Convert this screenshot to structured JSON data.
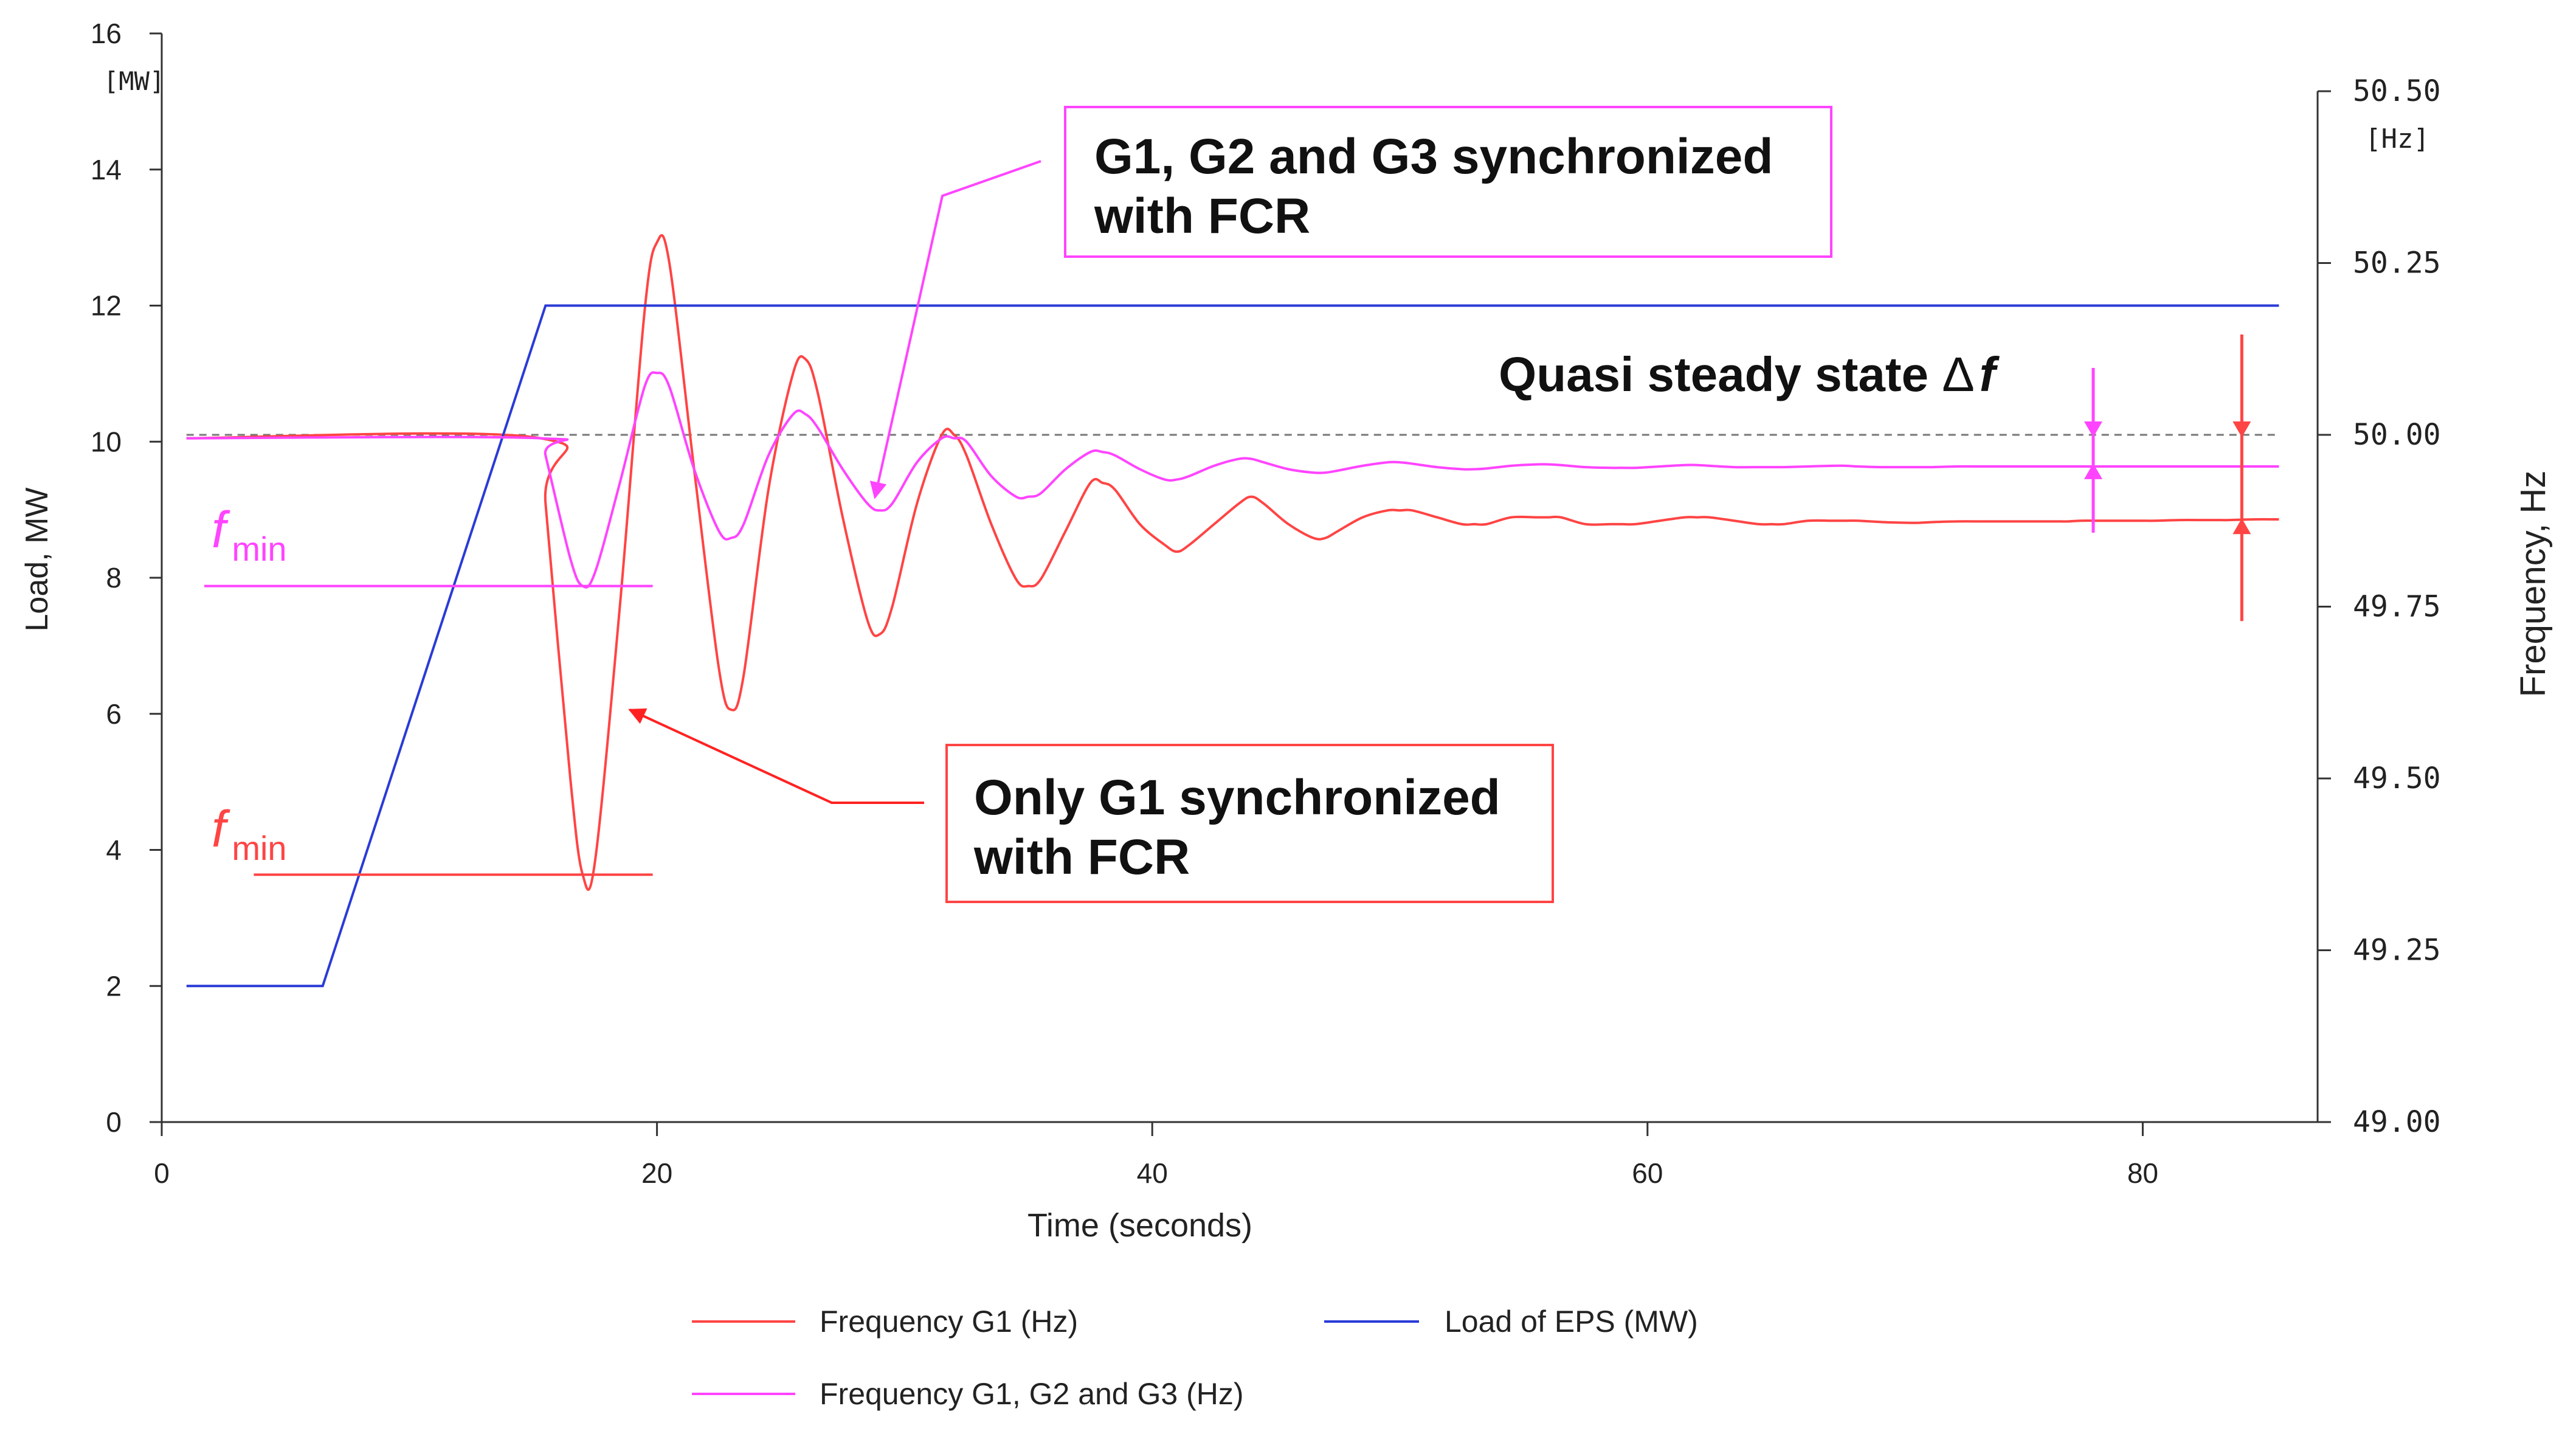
{
  "chart_data": {
    "type": "line",
    "x_axis": {
      "label": "Time (seconds)",
      "range": [
        0,
        86
      ],
      "ticks": [
        0,
        20,
        40,
        60,
        80
      ]
    },
    "y_left": {
      "label": "Load, MW",
      "unit": "[MW]",
      "range": [
        0,
        16
      ],
      "ticks": [
        0,
        2,
        4,
        6,
        8,
        10,
        12,
        14,
        16
      ]
    },
    "y_right": {
      "label": "Frequency, Hz",
      "unit": "[Hz]",
      "range": [
        49.0,
        50.5
      ],
      "ticks": [
        "49.00",
        "49.25",
        "49.50",
        "49.75",
        "50.00",
        "50.25",
        "50.50"
      ]
    },
    "series": [
      {
        "name": "Frequency G1 (Hz)",
        "axis": "right",
        "color": "#ff4444",
        "x": [
          1,
          15.3,
          15.5,
          16.5,
          17,
          17.5,
          18.5,
          19.5,
          20,
          20.5,
          21.5,
          22.5,
          23,
          23.5,
          24.5,
          25.5,
          26,
          26.5,
          27.5,
          28.5,
          29,
          29.5,
          30.5,
          31.5,
          32,
          32.5,
          33.5,
          34.5,
          35,
          35.5,
          36.5,
          37.5,
          38,
          38.5,
          39.5,
          40.5,
          41,
          41.5,
          42.5,
          43.5,
          44,
          44.5,
          45.5,
          46.5,
          47,
          47.5,
          48.5,
          49.5,
          50,
          50.5,
          51.5,
          52.5,
          53,
          53.5,
          54.5,
          55.5,
          56,
          56.5,
          57.5,
          58.5,
          59,
          59.5,
          60.5,
          61.5,
          62,
          62.5,
          63.5,
          64.5,
          65,
          65.5,
          66.5,
          67.5,
          68,
          68.5,
          69.5,
          70.5,
          71,
          71.5,
          72.5,
          73.5,
          74,
          74.5,
          75.5,
          76.5,
          77,
          77.5,
          78.5,
          79.5,
          80,
          80.5,
          81.5,
          82.5,
          83,
          83.5,
          84.5,
          85.5
        ],
        "y": [
          49.995,
          49.995,
          49.9,
          49.5,
          49.36,
          49.38,
          49.75,
          50.18,
          50.28,
          50.25,
          49.95,
          49.66,
          49.6,
          49.65,
          49.92,
          50.09,
          50.11,
          50.06,
          49.88,
          49.73,
          49.71,
          49.75,
          49.9,
          50.0,
          50.0,
          49.97,
          49.87,
          49.79,
          49.78,
          49.79,
          49.86,
          49.93,
          49.93,
          49.92,
          49.87,
          49.84,
          49.83,
          49.84,
          49.87,
          49.9,
          49.91,
          49.9,
          49.87,
          49.85,
          49.85,
          49.86,
          49.88,
          49.89,
          49.89,
          49.89,
          49.88,
          49.87,
          49.87,
          49.87,
          49.88,
          49.88,
          49.88,
          49.88,
          49.87,
          49.87,
          49.87,
          49.87,
          49.875,
          49.88,
          49.88,
          49.88,
          49.875,
          49.87,
          49.87,
          49.87,
          49.875,
          49.875,
          49.875,
          49.875,
          49.873,
          49.872,
          49.872,
          49.873,
          49.874,
          49.874,
          49.874,
          49.874,
          49.874,
          49.874,
          49.874,
          49.875,
          49.875,
          49.875,
          49.875,
          49.875,
          49.876,
          49.876,
          49.876,
          49.876,
          49.877,
          49.877
        ]
      },
      {
        "name": "Load of EPS (MW)",
        "axis": "left",
        "color": "#2a3bd6",
        "x": [
          1,
          6.5,
          15.5,
          85.5
        ],
        "y": [
          2,
          2,
          12,
          12
        ]
      },
      {
        "name": "Frequency G1, G2 and G3 (Hz)",
        "axis": "right",
        "color": "#ff44ff",
        "x": [
          1,
          15.3,
          15.5,
          16.5,
          17,
          17.5,
          18.5,
          19.5,
          20,
          20.5,
          21.5,
          22.5,
          23,
          23.5,
          24.5,
          25.5,
          26,
          26.5,
          27.5,
          28.5,
          29,
          29.5,
          30.5,
          31.5,
          32,
          32.5,
          33.5,
          34.5,
          35,
          35.5,
          36.5,
          37.5,
          38,
          38.5,
          39.5,
          40.5,
          41,
          41.5,
          42.5,
          43.5,
          44,
          44.5,
          45.5,
          46.5,
          47,
          47.5,
          48.5,
          49.5,
          50,
          50.5,
          51.5,
          52.5,
          53,
          53.5,
          54.5,
          55.5,
          56,
          56.5,
          57.5,
          58.5,
          59,
          59.5,
          60.5,
          61.5,
          62,
          62.5,
          63.5,
          64.5,
          65,
          65.5,
          66.5,
          67.5,
          68,
          68.5,
          69.5,
          70.5,
          71,
          71.5,
          72.5,
          73.5,
          74,
          74.5,
          75.5,
          76.5,
          77,
          77.5,
          78.5,
          79.5,
          80,
          80.5,
          81.5,
          82.5,
          83,
          83.5,
          84.5,
          85.5
        ],
        "y": [
          49.995,
          49.995,
          49.97,
          49.82,
          49.78,
          49.8,
          49.93,
          50.07,
          50.09,
          50.07,
          49.95,
          49.86,
          49.85,
          49.87,
          49.97,
          50.03,
          50.03,
          50.01,
          49.95,
          49.9,
          49.89,
          49.9,
          49.96,
          49.995,
          49.995,
          49.99,
          49.94,
          49.91,
          49.91,
          49.915,
          49.95,
          49.975,
          49.975,
          49.97,
          49.95,
          49.935,
          49.935,
          49.94,
          49.955,
          49.965,
          49.965,
          49.96,
          49.95,
          49.945,
          49.945,
          49.948,
          49.955,
          49.96,
          49.96,
          49.958,
          49.953,
          49.95,
          49.95,
          49.951,
          49.955,
          49.957,
          49.957,
          49.956,
          49.953,
          49.952,
          49.952,
          49.952,
          49.954,
          49.956,
          49.956,
          49.955,
          49.953,
          49.953,
          49.953,
          49.953,
          49.954,
          49.955,
          49.955,
          49.954,
          49.953,
          49.953,
          49.953,
          49.953,
          49.954,
          49.954,
          49.954,
          49.954,
          49.954,
          49.954,
          49.954,
          49.954,
          49.954,
          49.954,
          49.954,
          49.954,
          49.954,
          49.954,
          49.954,
          49.954,
          49.954,
          49.954
        ]
      }
    ],
    "reference_line": {
      "axis": "right",
      "value": 50.0,
      "style": "dashed",
      "color": "#777777"
    },
    "fmin_lines": [
      {
        "label_main": "f",
        "label_sub": "min",
        "color": "#ff44ff",
        "x": [
          0,
          20
        ],
        "y": 49.78
      },
      {
        "label_main": "f",
        "label_sub": "min",
        "color": "#ff4444",
        "x": [
          2,
          20
        ],
        "y": 49.36
      }
    ],
    "delta_f_markers": [
      {
        "color": "#ff44ff",
        "x": 78,
        "y_top": 50.0,
        "y_bottom": 49.955
      },
      {
        "color": "#ff4444",
        "x": 84,
        "y_top": 50.0,
        "y_bottom": 49.875
      }
    ],
    "annotations": [
      {
        "lines": [
          "G1, G2 and G3 synchronized",
          "with FCR"
        ],
        "border": "#ff44ff",
        "pointer_color": "#ff44ff",
        "target": {
          "x": 28.8,
          "y": 49.9
        }
      },
      {
        "lines": [
          "Only G1 synchronized",
          "with FCR"
        ],
        "border": "#ff4444",
        "pointer_color": "#ff4444",
        "target": {
          "x": 18.9,
          "y": 49.6
        }
      }
    ],
    "quasi_label": {
      "prefix": "Quasi steady state ",
      "delta": "Δ",
      "var": "f"
    },
    "legend": {
      "placement": "bottom",
      "items": [
        {
          "name": "Frequency G1 (Hz)",
          "color": "#ff4444"
        },
        {
          "name": "Load of EPS (MW)",
          "color": "#2a3bd6"
        },
        {
          "name": "Frequency G1, G2 and G3 (Hz)",
          "color": "#ff44ff"
        }
      ]
    }
  }
}
